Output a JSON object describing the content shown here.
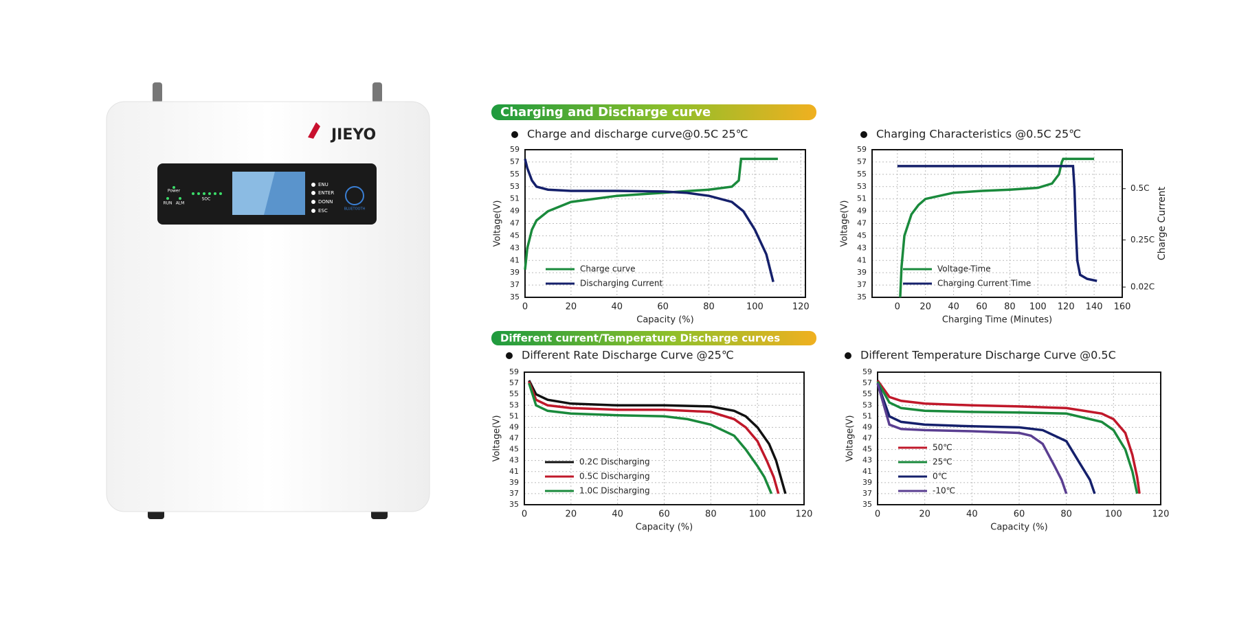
{
  "product": {
    "brand": "JIEYO",
    "power": "Power",
    "run": "RUN",
    "alm": "ALM",
    "soc": "SOC",
    "buttons": [
      "ENU",
      "ENTER",
      "DONN",
      "ESC"
    ],
    "bluetooth": "BLUETOOTH"
  },
  "sections": [
    "Charging and Discharge curve",
    "Different current/Temperature Discharge curves"
  ],
  "chart_data": [
    {
      "type": "line",
      "title": "Charge and discharge curve@0.5C 25℃",
      "xlabel": "Capacity (%)",
      "ylabel": "Voltage(V)",
      "xlim": [
        0,
        122
      ],
      "xticks": [
        0,
        20,
        40,
        60,
        80,
        100,
        120
      ],
      "ylim": [
        35,
        59
      ],
      "yticks": [
        35,
        37,
        39,
        41,
        43,
        45,
        47,
        49,
        51,
        53,
        55,
        57,
        59
      ],
      "grid": true,
      "legend": "lower left",
      "series": [
        {
          "name": "Charge curve",
          "color": "#1a8a3c",
          "x": [
            0,
            1,
            3,
            5,
            10,
            20,
            40,
            60,
            80,
            90,
            93,
            94,
            95,
            110
          ],
          "values": [
            39.5,
            43,
            46,
            47.5,
            49,
            50.5,
            51.5,
            52,
            52.5,
            53,
            54,
            57.5,
            57.5,
            57.5
          ]
        },
        {
          "name": "Discharging Current",
          "color": "#15206b",
          "x": [
            0,
            1,
            3,
            5,
            10,
            20,
            40,
            60,
            70,
            80,
            90,
            95,
            100,
            105,
            108
          ],
          "values": [
            57.5,
            56,
            54,
            53,
            52.5,
            52.3,
            52.3,
            52.2,
            52,
            51.5,
            50.5,
            49,
            46,
            42,
            37.5
          ]
        }
      ]
    },
    {
      "type": "line",
      "title": "Charging Characteristics @0.5C 25℃",
      "xlabel": "Charging Time (Minutes)",
      "ylabel": "Voltage(V)",
      "y2label": "Charge Current",
      "xlim": [
        -18,
        160
      ],
      "xticks": [
        0,
        20,
        40,
        60,
        80,
        100,
        120,
        140,
        160
      ],
      "ylim": [
        35,
        59
      ],
      "yticks": [
        35,
        37,
        39,
        41,
        43,
        45,
        47,
        49,
        51,
        53,
        55,
        57,
        59
      ],
      "y2lim": [
        -0.03,
        0.69
      ],
      "y2ticks": [
        {
          "value": 0.02,
          "label": "0.02C"
        },
        {
          "value": 0.25,
          "label": "0.25C"
        },
        {
          "value": 0.5,
          "label": "0.5C"
        }
      ],
      "grid": true,
      "legend": "lower left",
      "series": [
        {
          "name": "Voltage-Time",
          "color": "#1a8a3c",
          "x": [
            2,
            3,
            5,
            10,
            15,
            20,
            40,
            60,
            80,
            100,
            110,
            115,
            117,
            118,
            140
          ],
          "values": [
            35,
            40,
            45,
            48.5,
            50,
            51,
            52,
            52.3,
            52.5,
            52.8,
            53.5,
            55,
            57,
            57.5,
            57.5
          ]
        },
        {
          "name": "Charging Current Time",
          "color": "#15206b",
          "axis": "y2",
          "x": [
            0,
            125,
            126,
            127,
            128,
            130,
            135,
            142
          ],
          "values": [
            0.61,
            0.61,
            0.5,
            0.3,
            0.15,
            0.08,
            0.06,
            0.05
          ]
        }
      ]
    },
    {
      "type": "line",
      "title": "Different Rate Discharge Curve @25℃",
      "xlabel": "Capacity (%)",
      "ylabel": "Voltage(V)",
      "xlim": [
        0,
        120
      ],
      "xticks": [
        0,
        20,
        40,
        60,
        80,
        100,
        120
      ],
      "ylim": [
        35,
        59
      ],
      "yticks": [
        35,
        37,
        39,
        41,
        43,
        45,
        47,
        49,
        51,
        53,
        55,
        57,
        59
      ],
      "grid": true,
      "legend": "lower left",
      "series": [
        {
          "name": "0.2C Discharging",
          "color": "#111111",
          "x": [
            2,
            5,
            10,
            20,
            40,
            60,
            80,
            90,
            95,
            100,
            105,
            108,
            110,
            112
          ],
          "values": [
            57.5,
            55,
            54,
            53.3,
            53,
            53,
            52.8,
            52,
            51,
            49,
            46,
            43,
            40,
            37
          ]
        },
        {
          "name": "0.5C Discharging",
          "color": "#c0182a",
          "x": [
            2,
            5,
            10,
            20,
            40,
            60,
            80,
            90,
            95,
            100,
            104,
            107,
            109
          ],
          "values": [
            57.3,
            54,
            53,
            52.5,
            52.2,
            52.2,
            51.8,
            50.5,
            49,
            46.5,
            43,
            40,
            37
          ]
        },
        {
          "name": "1.0C Discharging",
          "color": "#1a8a3c",
          "x": [
            2,
            5,
            10,
            20,
            40,
            60,
            70,
            80,
            90,
            95,
            100,
            103,
            106
          ],
          "values": [
            57,
            53,
            52,
            51.5,
            51.2,
            51,
            50.5,
            49.5,
            47.5,
            45,
            42,
            40,
            37
          ]
        }
      ]
    },
    {
      "type": "line",
      "title": "Different Temperature Discharge Curve @0.5C",
      "xlabel": "Capacity (%)",
      "ylabel": "Voltage(V)",
      "xlim": [
        0,
        120
      ],
      "xticks": [
        0,
        20,
        40,
        60,
        80,
        100,
        120
      ],
      "ylim": [
        35,
        59
      ],
      "yticks": [
        35,
        37,
        39,
        41,
        43,
        45,
        47,
        49,
        51,
        53,
        55,
        57,
        59
      ],
      "grid": true,
      "legend": "lower left",
      "series": [
        {
          "name": "50℃",
          "color": "#c0182a",
          "x": [
            0,
            5,
            10,
            20,
            40,
            60,
            80,
            95,
            100,
            105,
            108,
            110,
            111
          ],
          "values": [
            57.5,
            54.5,
            53.8,
            53.3,
            53,
            52.8,
            52.5,
            51.5,
            50.5,
            48,
            44,
            40,
            37
          ]
        },
        {
          "name": "25℃",
          "color": "#1a8a3c",
          "x": [
            0,
            5,
            10,
            20,
            40,
            60,
            80,
            95,
            100,
            105,
            108,
            110
          ],
          "values": [
            57.3,
            53.5,
            52.5,
            52,
            51.8,
            51.7,
            51.5,
            50,
            48.5,
            45,
            41,
            37
          ]
        },
        {
          "name": "0℃",
          "color": "#15206b",
          "x": [
            0,
            5,
            10,
            20,
            40,
            60,
            70,
            80,
            85,
            90,
            92
          ],
          "values": [
            57,
            51,
            50,
            49.5,
            49.2,
            49,
            48.5,
            46.5,
            43,
            39.5,
            37
          ]
        },
        {
          "name": "-10℃",
          "color": "#5a3e91",
          "x": [
            0,
            5,
            10,
            20,
            40,
            60,
            65,
            70,
            75,
            78,
            80
          ],
          "values": [
            57,
            49.5,
            48.7,
            48.5,
            48.3,
            48,
            47.5,
            46,
            42,
            39.5,
            37
          ]
        }
      ]
    }
  ]
}
